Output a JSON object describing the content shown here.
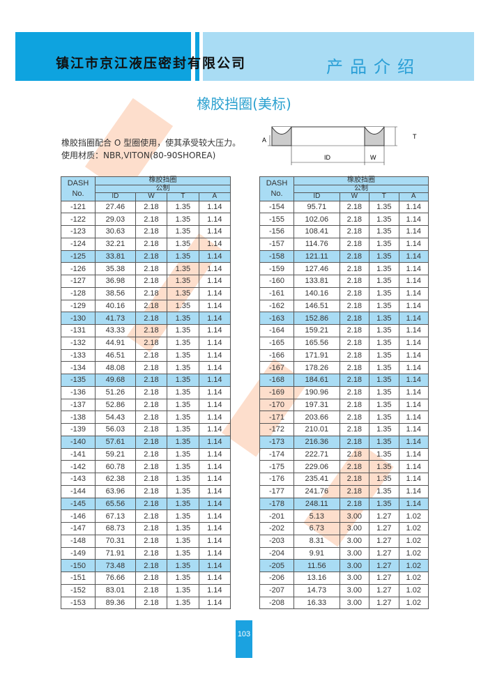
{
  "header": {
    "company": "镇江市京江液压密封有限公司",
    "section": "产品介绍",
    "brand_color": "#0ea3df",
    "light_color": "#a9dcf4"
  },
  "title": "橡胶挡圈(美标)",
  "description": [
    "橡胶挡圈配合 O 型圈使用，使其承受较大压力。",
    "使用材质：NBR,VITON(80-90SHOREA)"
  ],
  "diagram": {
    "labels": {
      "id": "ID",
      "w": "W",
      "t": "T",
      "a": "A"
    }
  },
  "table_header": {
    "dash": "DASH",
    "no": "No.",
    "group": "橡胶挡圈",
    "unit": "公制",
    "cols": [
      "ID",
      "W",
      "T",
      "A"
    ]
  },
  "tables": [
    {
      "rows": [
        [
          "-121",
          "27.46",
          "2.18",
          "1.35",
          "1.14"
        ],
        [
          "-122",
          "29.03",
          "2.18",
          "1.35",
          "1.14"
        ],
        [
          "-123",
          "30.63",
          "2.18",
          "1.35",
          "1.14"
        ],
        [
          "-124",
          "32.21",
          "2.18",
          "1.35",
          "1.14"
        ],
        [
          "-125",
          "33.81",
          "2.18",
          "1.35",
          "1.14"
        ],
        [
          "-126",
          "35.38",
          "2.18",
          "1.35",
          "1.14"
        ],
        [
          "-127",
          "36.98",
          "2.18",
          "1.35",
          "1.14"
        ],
        [
          "-128",
          "38.56",
          "2.18",
          "1.35",
          "1.14"
        ],
        [
          "-129",
          "40.16",
          "2.18",
          "1.35",
          "1.14"
        ],
        [
          "-130",
          "41.73",
          "2.18",
          "1.35",
          "1.14"
        ],
        [
          "-131",
          "43.33",
          "2.18",
          "1.35",
          "1.14"
        ],
        [
          "-132",
          "44.91",
          "2.18",
          "1.35",
          "1.14"
        ],
        [
          "-133",
          "46.51",
          "2.18",
          "1.35",
          "1.14"
        ],
        [
          "-134",
          "48.08",
          "2.18",
          "1.35",
          "1.14"
        ],
        [
          "-135",
          "49.68",
          "2.18",
          "1.35",
          "1.14"
        ],
        [
          "-136",
          "51.26",
          "2.18",
          "1.35",
          "1.14"
        ],
        [
          "-137",
          "52.86",
          "2.18",
          "1.35",
          "1.14"
        ],
        [
          "-138",
          "54.43",
          "2.18",
          "1.35",
          "1.14"
        ],
        [
          "-139",
          "56.03",
          "2.18",
          "1.35",
          "1.14"
        ],
        [
          "-140",
          "57.61",
          "2.18",
          "1.35",
          "1.14"
        ],
        [
          "-141",
          "59.21",
          "2.18",
          "1.35",
          "1.14"
        ],
        [
          "-142",
          "60.78",
          "2.18",
          "1.35",
          "1.14"
        ],
        [
          "-143",
          "62.38",
          "2.18",
          "1.35",
          "1.14"
        ],
        [
          "-144",
          "63.96",
          "2.18",
          "1.35",
          "1.14"
        ],
        [
          "-145",
          "65.56",
          "2.18",
          "1.35",
          "1.14"
        ],
        [
          "-146",
          "67.13",
          "2.18",
          "1.35",
          "1.14"
        ],
        [
          "-147",
          "68.73",
          "2.18",
          "1.35",
          "1.14"
        ],
        [
          "-148",
          "70.31",
          "2.18",
          "1.35",
          "1.14"
        ],
        [
          "-149",
          "71.91",
          "2.18",
          "1.35",
          "1.14"
        ],
        [
          "-150",
          "73.48",
          "2.18",
          "1.35",
          "1.14"
        ],
        [
          "-151",
          "76.66",
          "2.18",
          "1.35",
          "1.14"
        ],
        [
          "-152",
          "83.01",
          "2.18",
          "1.35",
          "1.14"
        ],
        [
          "-153",
          "89.36",
          "2.18",
          "1.35",
          "1.14"
        ]
      ]
    },
    {
      "rows": [
        [
          "-154",
          "95.71",
          "2.18",
          "1.35",
          "1.14"
        ],
        [
          "-155",
          "102.06",
          "2.18",
          "1.35",
          "1.14"
        ],
        [
          "-156",
          "108.41",
          "2.18",
          "1.35",
          "1.14"
        ],
        [
          "-157",
          "114.76",
          "2.18",
          "1.35",
          "1.14"
        ],
        [
          "-158",
          "121.11",
          "2.18",
          "1.35",
          "1.14"
        ],
        [
          "-159",
          "127.46",
          "2.18",
          "1.35",
          "1.14"
        ],
        [
          "-160",
          "133.81",
          "2.18",
          "1.35",
          "1.14"
        ],
        [
          "-161",
          "140.16",
          "2.18",
          "1.35",
          "1.14"
        ],
        [
          "-162",
          "146.51",
          "2.18",
          "1.35",
          "1.14"
        ],
        [
          "-163",
          "152.86",
          "2.18",
          "1.35",
          "1.14"
        ],
        [
          "-164",
          "159.21",
          "2.18",
          "1.35",
          "1.14"
        ],
        [
          "-165",
          "165.56",
          "2.18",
          "1.35",
          "1.14"
        ],
        [
          "-166",
          "171.91",
          "2.18",
          "1.35",
          "1.14"
        ],
        [
          "-167",
          "178.26",
          "2.18",
          "1.35",
          "1.14"
        ],
        [
          "-168",
          "184.61",
          "2.18",
          "1.35",
          "1.14"
        ],
        [
          "-169",
          "190.96",
          "2.18",
          "1.35",
          "1.14"
        ],
        [
          "-170",
          "197.31",
          "2.18",
          "1.35",
          "1.14"
        ],
        [
          "-171",
          "203.66",
          "2.18",
          "1.35",
          "1.14"
        ],
        [
          "-172",
          "210.01",
          "2.18",
          "1.35",
          "1.14"
        ],
        [
          "-173",
          "216.36",
          "2.18",
          "1.35",
          "1.14"
        ],
        [
          "-174",
          "222.71",
          "2.18",
          "1.35",
          "1.14"
        ],
        [
          "-175",
          "229.06",
          "2.18",
          "1.35",
          "1.14"
        ],
        [
          "-176",
          "235.41",
          "2.18",
          "1.35",
          "1.14"
        ],
        [
          "-177",
          "241.76",
          "2.18",
          "1.35",
          "1.14"
        ],
        [
          "-178",
          "248.11",
          "2.18",
          "1.35",
          "1.14"
        ],
        [
          "-201",
          "5.13",
          "3.00",
          "1.27",
          "1.02"
        ],
        [
          "-202",
          "6.73",
          "3.00",
          "1.27",
          "1.02"
        ],
        [
          "-203",
          "8.31",
          "3.00",
          "1.27",
          "1.02"
        ],
        [
          "-204",
          "9.91",
          "3.00",
          "1.27",
          "1.02"
        ],
        [
          "-205",
          "11.56",
          "3.00",
          "1.27",
          "1.02"
        ],
        [
          "-206",
          "13.16",
          "3.00",
          "1.27",
          "1.02"
        ],
        [
          "-207",
          "14.73",
          "3.00",
          "1.27",
          "1.02"
        ],
        [
          "-208",
          "16.33",
          "3.00",
          "1.27",
          "1.02"
        ]
      ]
    }
  ],
  "page_number": "103"
}
